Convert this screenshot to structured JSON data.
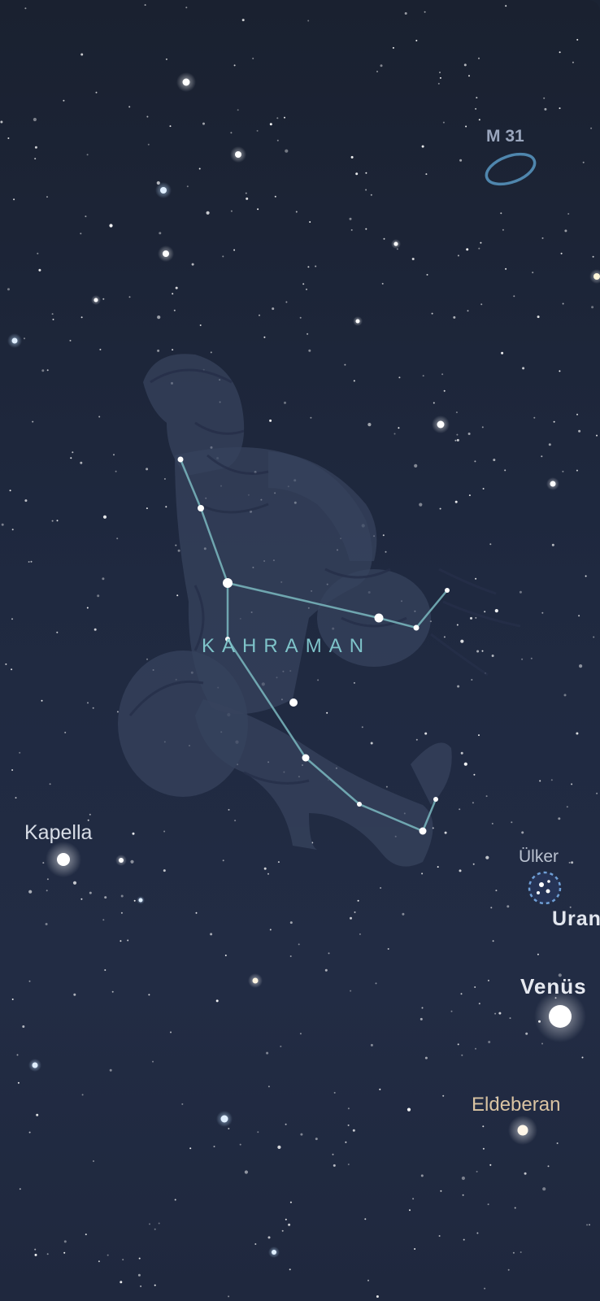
{
  "sky": {
    "constellation_name": "KAHRAMAN",
    "labels": {
      "deep_sky_object": "M 31",
      "bright_star_left": "Kapella",
      "star_cluster": "Ülker",
      "planet_1": "Uran",
      "planet_2": "Venüs",
      "bright_star_bottom": "Eldeberan"
    },
    "colors": {
      "background": "#1f2940",
      "constellation_line": "#7ab8c0",
      "constellation_label": "#7ec3c9",
      "m31_ellipse": "#4f86ad",
      "star": "#ffffff",
      "eldeberan_label": "#d9c3a2"
    }
  }
}
